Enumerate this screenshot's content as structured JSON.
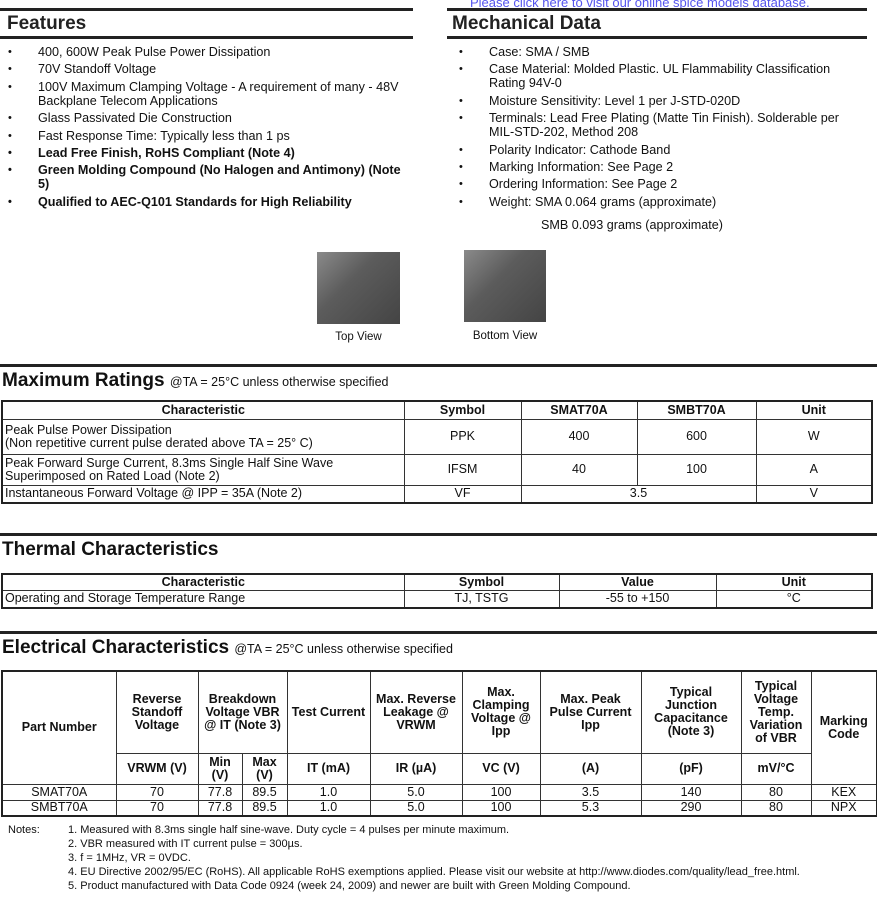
{
  "top_link": "Please click here to visit our online spice models database.",
  "features": {
    "title": "Features",
    "items": [
      {
        "text": "400, 600W Peak Pulse Power Dissipation",
        "bold": false
      },
      {
        "text": "70V Standoff Voltage",
        "bold": false
      },
      {
        "text": "100V Maximum Clamping Voltage - A requirement of many - 48V Backplane Telecom Applications",
        "bold": false
      },
      {
        "text": "Glass Passivated Die Construction",
        "bold": false
      },
      {
        "text": "Fast Response Time: Typically less than 1 ps",
        "bold": false
      },
      {
        "text": "Lead Free Finish, RoHS Compliant (Note 4)",
        "bold": true
      },
      {
        "text": "Green Molding Compound (No Halogen and Antimony) (Note 5)",
        "bold": true
      },
      {
        "text": "Qualified to AEC-Q101 Standards for High Reliability",
        "bold": true
      }
    ]
  },
  "mechanical": {
    "title": "Mechanical Data",
    "items": [
      "Case: SMA / SMB",
      "Case Material: Molded Plastic.  UL Flammability Classification Rating 94V-0",
      "Moisture Sensitivity:  Level 1 per J-STD-020D",
      "Terminals: Lead Free Plating (Matte Tin Finish). Solderable per MIL-STD-202, Method 208",
      "Polarity Indicator: Cathode Band",
      "Marking Information: See Page 2",
      "Ordering Information: See Page 2",
      "Weight:  SMA  0.064 grams (approximate)"
    ],
    "weight_line2": "SMB  0.093 grams (approximate)"
  },
  "images": {
    "top": "Top View",
    "bottom": "Bottom View"
  },
  "max_ratings": {
    "title": "Maximum Ratings",
    "cond": "@TA = 25°C unless otherwise specified",
    "headers": [
      "Characteristic",
      "Symbol",
      "SMAT70A",
      "SMBT70A",
      "Unit"
    ],
    "rows": [
      [
        "Peak Pulse Power Dissipation",
        "(Non repetitive current pulse derated above TA = 25° C)",
        "PPK",
        "400",
        "600",
        "W"
      ],
      [
        "Peak Forward Surge Current, 8.3ms Single Half Sine Wave",
        "Superimposed on Rated Load (Note 2)",
        "IFSM",
        "40",
        "100",
        "A"
      ],
      [
        "Instantaneous Forward Voltage @ IPP = 35A  (Note 2)",
        "",
        "VF",
        "3.5",
        "",
        "V"
      ]
    ]
  },
  "thermal": {
    "title": "Thermal Characteristics",
    "headers": [
      "Characteristic",
      "Symbol",
      "Value",
      "Unit"
    ],
    "row": [
      "Operating and Storage Temperature Range",
      "TJ, TSTG",
      "-55 to +150",
      "°C"
    ]
  },
  "electrical": {
    "title": "Electrical Characteristics",
    "cond": "@TA = 25°C unless otherwise specified",
    "headers": [
      "Part Number",
      "Reverse Standoff Voltage",
      "Breakdown Voltage VBR @ IT (Note 3)",
      "Test Current",
      "Max. Reverse Leakage @ VRWM",
      "Max. Clamping Voltage @ Ipp",
      "Max. Peak Pulse Current Ipp",
      "Typical Junction Capacitance (Note 3)",
      "Typical Voltage Temp. Variation of VBR",
      "Marking Code"
    ],
    "units": [
      "VRWM (V)",
      "Min (V)",
      "Max (V)",
      "IT (mA)",
      "IR (µA)",
      "VC (V)",
      "(A)",
      "(pF)",
      "mV/°C"
    ],
    "rows": [
      [
        "SMAT70A",
        "70",
        "77.8",
        "89.5",
        "1.0",
        "5.0",
        "100",
        "3.5",
        "140",
        "80",
        "KEX"
      ],
      [
        "SMBT70A",
        "70",
        "77.8",
        "89.5",
        "1.0",
        "5.0",
        "100",
        "5.3",
        "290",
        "80",
        "NPX"
      ]
    ]
  },
  "notes": {
    "label": "Notes:",
    "items": [
      "1.  Measured with 8.3ms single half sine-wave.  Duty cycle = 4 pulses per minute maximum.",
      "2.  VBR measured with IT current pulse = 300µs.",
      "3.  f = 1MHz, VR = 0VDC.",
      "4.  EU Directive 2002/95/EC (RoHS). All applicable RoHS exemptions applied. Please visit our website at http://www.diodes.com/quality/lead_free.html.",
      "5.  Product manufactured with Data Code 0924 (week 24, 2009) and newer are built with Green Molding Compound."
    ]
  }
}
